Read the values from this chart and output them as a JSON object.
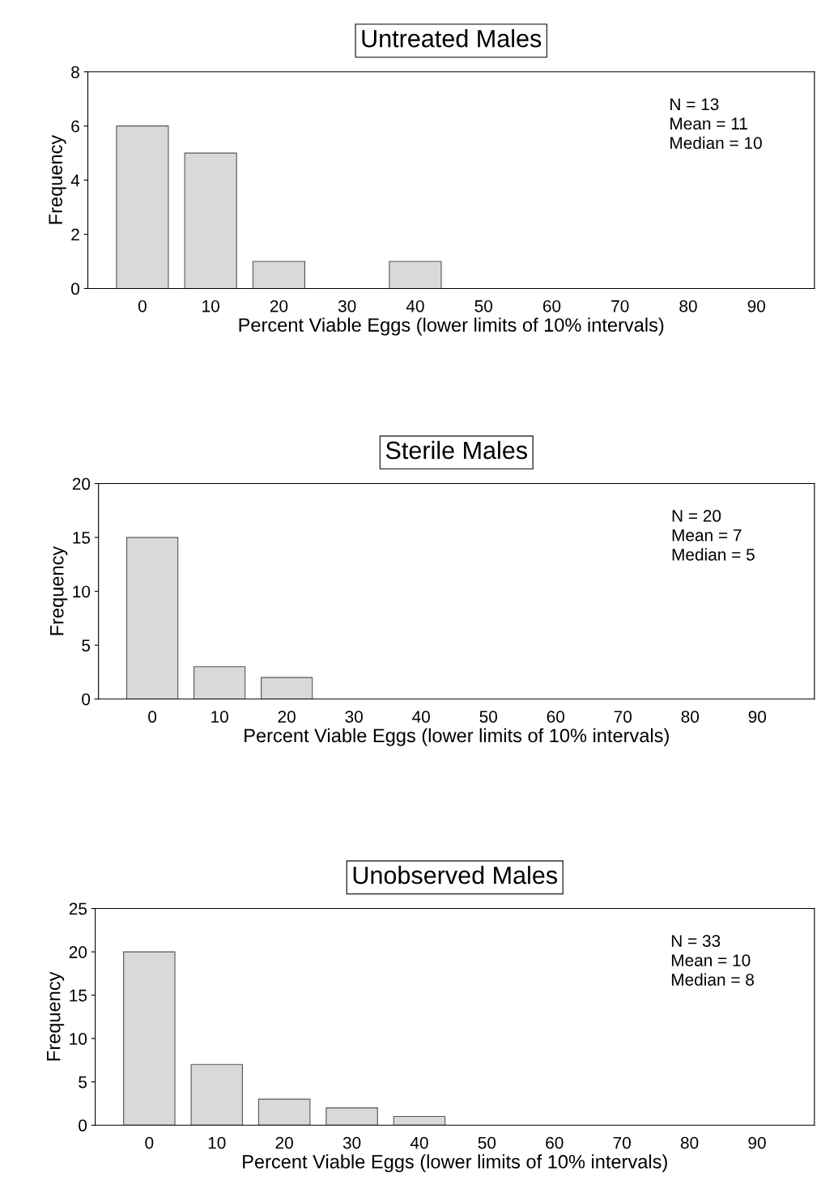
{
  "chart_data": [
    {
      "type": "bar",
      "title": "Untreated Males",
      "xlabel": "Percent Viable Eggs (lower limits of 10% intervals)",
      "ylabel": "Frequency",
      "categories": [
        "0",
        "10",
        "20",
        "30",
        "40",
        "50",
        "60",
        "70",
        "80",
        "90"
      ],
      "values": [
        6,
        5,
        1,
        0,
        1,
        0,
        0,
        0,
        0,
        0
      ],
      "color": "#d9d9d9",
      "ylim": [
        0,
        8
      ],
      "yticks": [
        0,
        2,
        4,
        6,
        8
      ],
      "grid": false,
      "legend": false,
      "annotations": [
        "N = 13",
        "Mean = 11",
        "Median = 10"
      ]
    },
    {
      "type": "bar",
      "title": "Sterile Males",
      "xlabel": "Percent Viable Eggs (lower limits of 10% intervals)",
      "ylabel": "Frequency",
      "categories": [
        "0",
        "10",
        "20",
        "30",
        "40",
        "50",
        "60",
        "70",
        "80",
        "90"
      ],
      "values": [
        15,
        3,
        2,
        0,
        0,
        0,
        0,
        0,
        0,
        0
      ],
      "color": "#d9d9d9",
      "ylim": [
        0,
        20
      ],
      "yticks": [
        0,
        5,
        10,
        15,
        20
      ],
      "grid": false,
      "legend": false,
      "annotations": [
        "N = 20",
        "Mean = 7",
        "Median = 5"
      ]
    },
    {
      "type": "bar",
      "title": "Unobserved Males",
      "xlabel": "Percent Viable Eggs (lower limits of 10% intervals)",
      "ylabel": "Frequency",
      "categories": [
        "0",
        "10",
        "20",
        "30",
        "40",
        "50",
        "60",
        "70",
        "80",
        "90"
      ],
      "values": [
        20,
        7,
        3,
        2,
        1,
        0,
        0,
        0,
        0,
        0
      ],
      "color": "#d9d9d9",
      "ylim": [
        0,
        25
      ],
      "yticks": [
        0,
        5,
        10,
        15,
        20,
        25
      ],
      "grid": false,
      "legend": false,
      "annotations": [
        "N = 33",
        "Mean = 10",
        "Median = 8"
      ]
    }
  ]
}
